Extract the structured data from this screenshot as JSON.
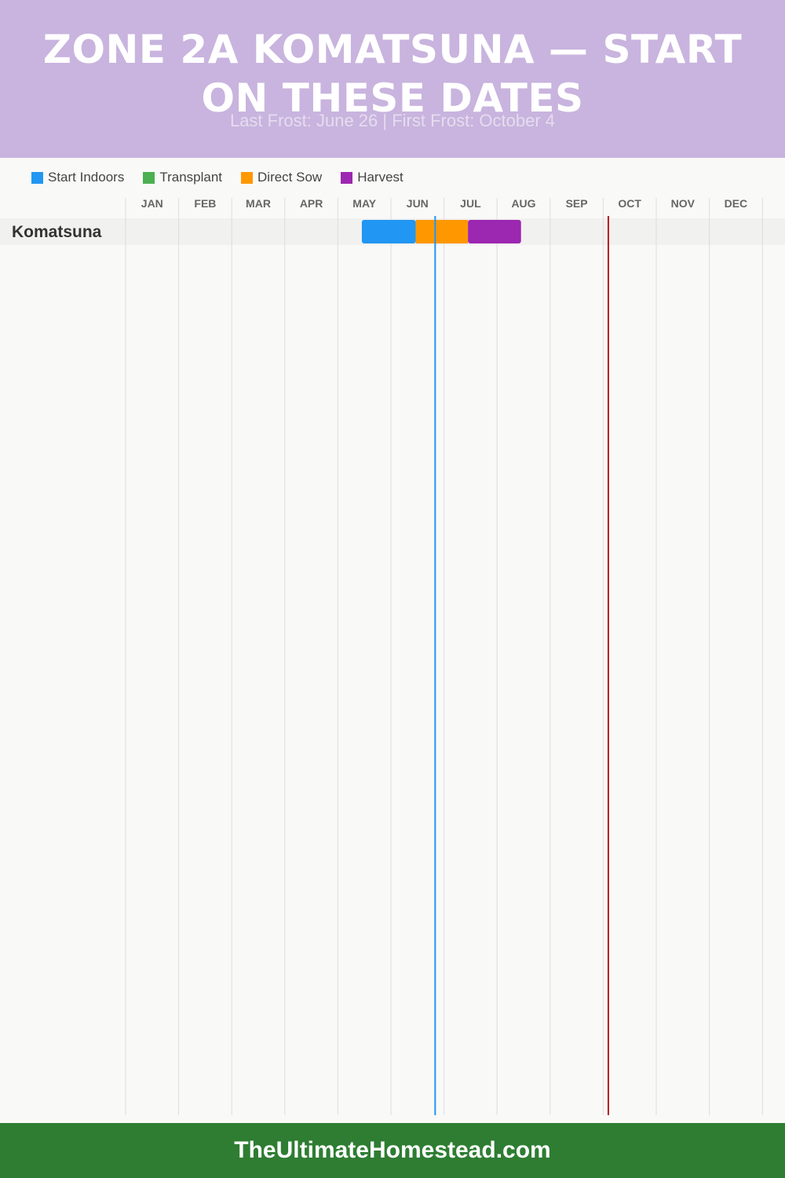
{
  "header": {
    "title": "ZONE 2A KOMATSUNA — START ON THESE DATES",
    "subtitle": "Last Frost: June 26 | First Frost: October 4",
    "background": "#c8b4de"
  },
  "legend": [
    {
      "label": "Start Indoors",
      "color": "#2196f3"
    },
    {
      "label": "Transplant",
      "color": "#4caf50"
    },
    {
      "label": "Direct Sow",
      "color": "#ff9800"
    },
    {
      "label": "Harvest",
      "color": "#9c27b0"
    }
  ],
  "chart_data": {
    "type": "gantt",
    "months": [
      "JAN",
      "FEB",
      "MAR",
      "APR",
      "MAY",
      "JUN",
      "JUL",
      "AUG",
      "SEP",
      "OCT",
      "NOV",
      "DEC"
    ],
    "rows": [
      {
        "crop": "Komatsuna",
        "segments": [
          {
            "activity": "Start Indoors",
            "start": "May 15",
            "end": "Jun 15",
            "color": "#2196f3"
          },
          {
            "activity": "Direct Sow",
            "start": "Jun 15",
            "end": "Jul 15",
            "color": "#ff9800"
          },
          {
            "activity": "Harvest",
            "start": "Jul 15",
            "end": "Aug 15",
            "color": "#9c27b0"
          }
        ]
      }
    ],
    "markers": [
      {
        "name": "Last Frost",
        "date": "June 26",
        "color": "#2196f3"
      },
      {
        "name": "First Frost",
        "date": "October 4",
        "color": "#b71c1c"
      }
    ]
  },
  "footer": {
    "text": "TheUltimateHomestead.com",
    "background": "#2e7d32"
  }
}
